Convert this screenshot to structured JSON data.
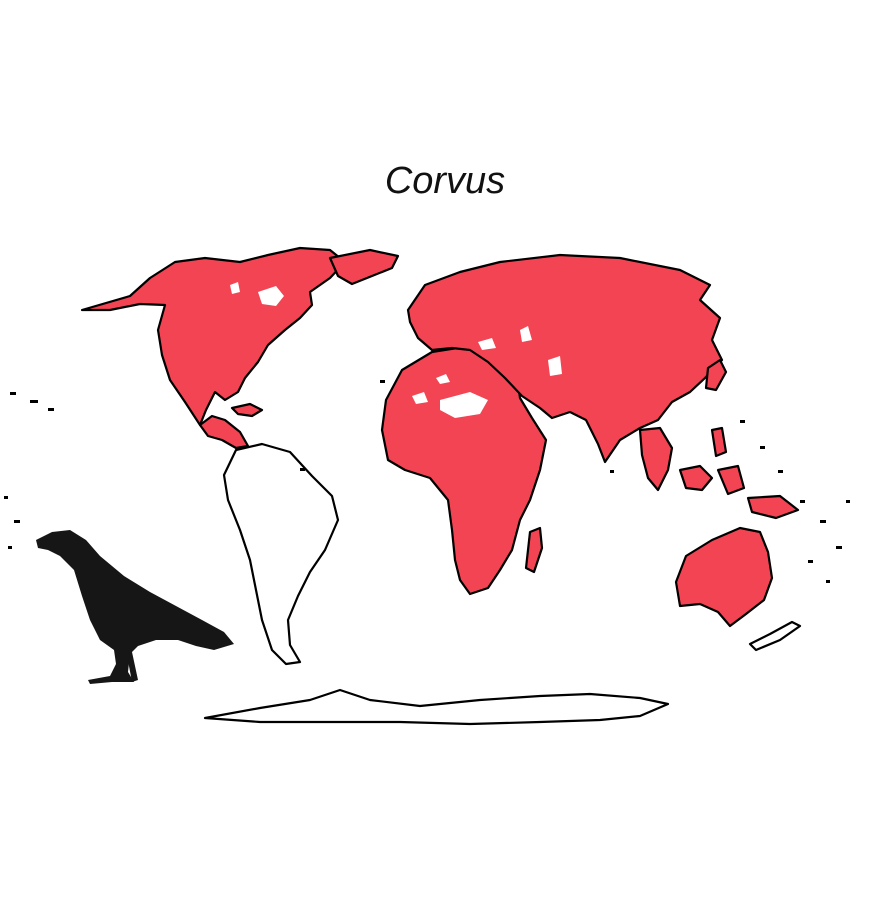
{
  "figure": {
    "title": "Corvus",
    "colors": {
      "range_fill": "#f24452",
      "outline": "#000000",
      "background": "#ffffff",
      "silhouette": "#161616"
    },
    "regions_in_range": [
      "north-america",
      "greenland",
      "central-america",
      "africa",
      "madagascar",
      "eurasia",
      "japan",
      "southeast-asia",
      "new-guinea",
      "australia"
    ],
    "regions_outside_range": [
      "south-america",
      "antarctica"
    ],
    "silhouette_icon": "crow-icon"
  }
}
